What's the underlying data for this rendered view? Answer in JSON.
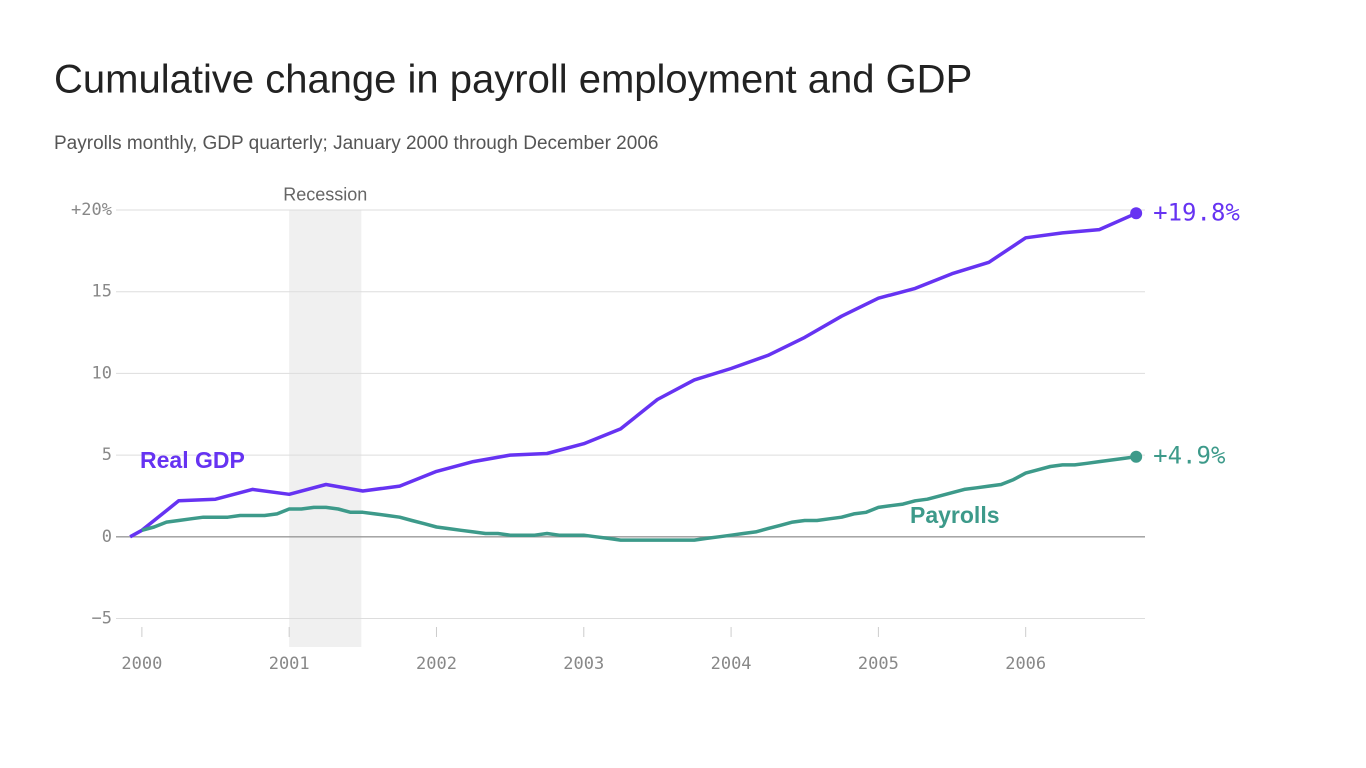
{
  "chart_data": {
    "type": "line",
    "title": "Cumulative change in payroll employment and GDP",
    "subtitle": "Payrolls monthly, GDP quarterly; January 2000 through December 2006",
    "xlim": [
      1999.77,
      2006.81
    ],
    "xticks": [
      2000,
      2001,
      2002,
      2003,
      2004,
      2005,
      2006
    ],
    "ylim": [
      -6.5,
      21
    ],
    "yticks": [
      {
        "value": -5,
        "label": "−5"
      },
      0,
      5,
      10,
      15,
      {
        "value": 20,
        "label": "+20%"
      }
    ],
    "grid": true,
    "annotations": [
      {
        "text": "Recession",
        "x_range": [
          2001.0,
          2001.49
        ]
      }
    ],
    "series": [
      {
        "name": "Real GDP",
        "color": "#6633f2",
        "x": [
          1999.92,
          2000,
          2000.25,
          2000.5,
          2000.75,
          2001,
          2001.25,
          2001.5,
          2001.75,
          2002,
          2002.25,
          2002.5,
          2002.75,
          2003,
          2003.25,
          2003.5,
          2003.75,
          2004,
          2004.25,
          2004.5,
          2004.75,
          2005,
          2005.25,
          2005.5,
          2005.75,
          2006,
          2006.25,
          2006.5,
          2006.75
        ],
        "values": [
          0,
          0.4,
          2.2,
          2.3,
          2.9,
          2.6,
          3.2,
          2.8,
          3.1,
          4.0,
          4.6,
          5.0,
          5.1,
          5.7,
          6.6,
          8.4,
          9.6,
          10.3,
          11.1,
          12.2,
          13.5,
          14.6,
          15.2,
          16.1,
          16.8,
          18.3,
          18.6,
          18.8,
          19.8
        ],
        "value_labels": [
          null,
          null,
          null,
          null,
          null,
          null,
          null,
          null,
          null,
          null,
          null,
          null,
          null,
          null,
          null,
          null,
          null,
          null,
          null,
          null,
          null,
          null,
          null,
          null,
          null,
          null,
          null,
          null,
          "+19.8%"
        ]
      },
      {
        "name": "Payrolls",
        "color": "#3d9a8a",
        "x": [
          2000,
          2000.083,
          2000.167,
          2000.25,
          2000.333,
          2000.417,
          2000.5,
          2000.583,
          2000.667,
          2000.75,
          2000.833,
          2000.917,
          2001,
          2001.083,
          2001.167,
          2001.25,
          2001.333,
          2001.417,
          2001.5,
          2001.583,
          2001.667,
          2001.75,
          2001.833,
          2001.917,
          2002,
          2002.083,
          2002.167,
          2002.25,
          2002.333,
          2002.417,
          2002.5,
          2002.583,
          2002.667,
          2002.75,
          2002.833,
          2002.917,
          2003,
          2003.083,
          2003.167,
          2003.25,
          2003.333,
          2003.417,
          2003.5,
          2003.583,
          2003.667,
          2003.75,
          2003.833,
          2003.917,
          2004,
          2004.083,
          2004.167,
          2004.25,
          2004.333,
          2004.417,
          2004.5,
          2004.583,
          2004.667,
          2004.75,
          2004.833,
          2004.917,
          2005,
          2005.083,
          2005.167,
          2005.25,
          2005.333,
          2005.417,
          2005.5,
          2005.583,
          2005.667,
          2005.75,
          2005.833,
          2005.917,
          2006,
          2006.083,
          2006.167,
          2006.25,
          2006.333,
          2006.417,
          2006.5,
          2006.583,
          2006.667,
          2006.75
        ],
        "values": [
          0.4,
          0.6,
          0.9,
          1.0,
          1.1,
          1.2,
          1.2,
          1.2,
          1.3,
          1.3,
          1.3,
          1.4,
          1.7,
          1.7,
          1.8,
          1.8,
          1.7,
          1.5,
          1.5,
          1.4,
          1.3,
          1.2,
          1.0,
          0.8,
          0.6,
          0.5,
          0.4,
          0.3,
          0.2,
          0.2,
          0.1,
          0.1,
          0.1,
          0.2,
          0.1,
          0.1,
          0.1,
          0.0,
          -0.1,
          -0.2,
          -0.2,
          -0.2,
          -0.2,
          -0.2,
          -0.2,
          -0.2,
          -0.1,
          0.0,
          0.1,
          0.2,
          0.3,
          0.5,
          0.7,
          0.9,
          1.0,
          1.0,
          1.1,
          1.2,
          1.4,
          1.5,
          1.8,
          1.9,
          2.0,
          2.2,
          2.3,
          2.5,
          2.7,
          2.9,
          3.0,
          3.1,
          3.2,
          3.5,
          3.9,
          4.1,
          4.3,
          4.4,
          4.4,
          4.5,
          4.6,
          4.7,
          4.8,
          4.9
        ],
        "value_labels": [
          null,
          null,
          null,
          null,
          null,
          null,
          null,
          null,
          null,
          null,
          null,
          null,
          null,
          null,
          null,
          null,
          null,
          null,
          null,
          null,
          null,
          null,
          null,
          null,
          null,
          null,
          null,
          null,
          null,
          null,
          null,
          null,
          null,
          null,
          null,
          null,
          null,
          null,
          null,
          null,
          null,
          null,
          null,
          null,
          null,
          null,
          null,
          null,
          null,
          null,
          null,
          null,
          null,
          null,
          null,
          null,
          null,
          null,
          null,
          null,
          null,
          null,
          null,
          null,
          null,
          null,
          null,
          null,
          null,
          null,
          null,
          null,
          null,
          null,
          null,
          null,
          null,
          null,
          null,
          null,
          null,
          "+4.9%"
        ]
      }
    ]
  }
}
